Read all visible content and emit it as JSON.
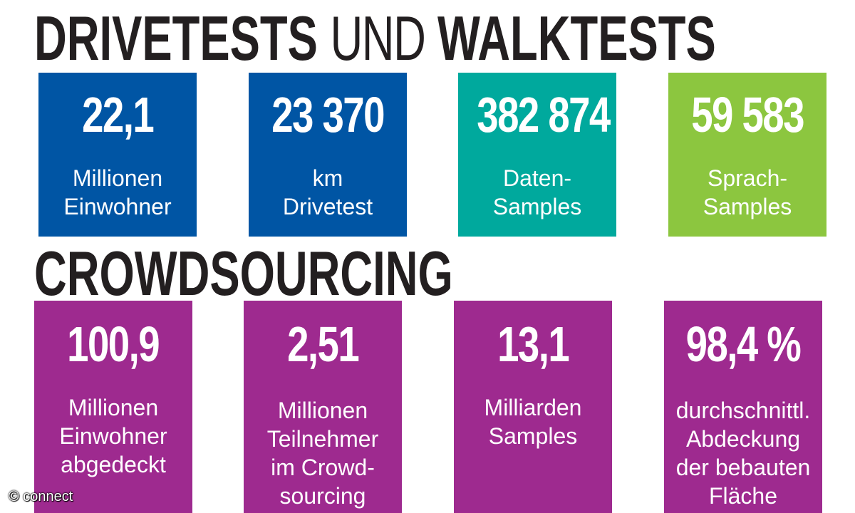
{
  "headings": {
    "section1_part1": "DRIVETESTS",
    "section1_part2": "UND",
    "section1_part3": "WALKTESTS",
    "section2": "CROWDSOURCING"
  },
  "drivetest_cards": [
    {
      "value": "22,1",
      "label": "Millionen\nEinwohner",
      "color": "#0055a4"
    },
    {
      "value": "23 370",
      "label": "km\nDrivetest",
      "color": "#0055a4"
    },
    {
      "value": "382 874",
      "label": "Daten-\nSamples",
      "color": "#00a99d"
    },
    {
      "value": "59 583",
      "label": "Sprach-\nSamples",
      "color": "#8cc63f"
    }
  ],
  "crowdsourcing_cards": [
    {
      "value": "100,9",
      "label": "Millionen\nEinwohner\nabgedeckt",
      "color": "#9e2a8f"
    },
    {
      "value": "2,51",
      "label": "Millionen\nTeilnehmer\nim Crowd-\nsourcing",
      "color": "#9e2a8f"
    },
    {
      "value": "13,1",
      "label": "Milliarden\nSamples",
      "color": "#9e2a8f"
    },
    {
      "value": "98,4 %",
      "label": "durchschnittl.\nAbdeckung\nder bebauten\nFläche",
      "color": "#9e2a8f"
    }
  ],
  "credit": "© connect"
}
